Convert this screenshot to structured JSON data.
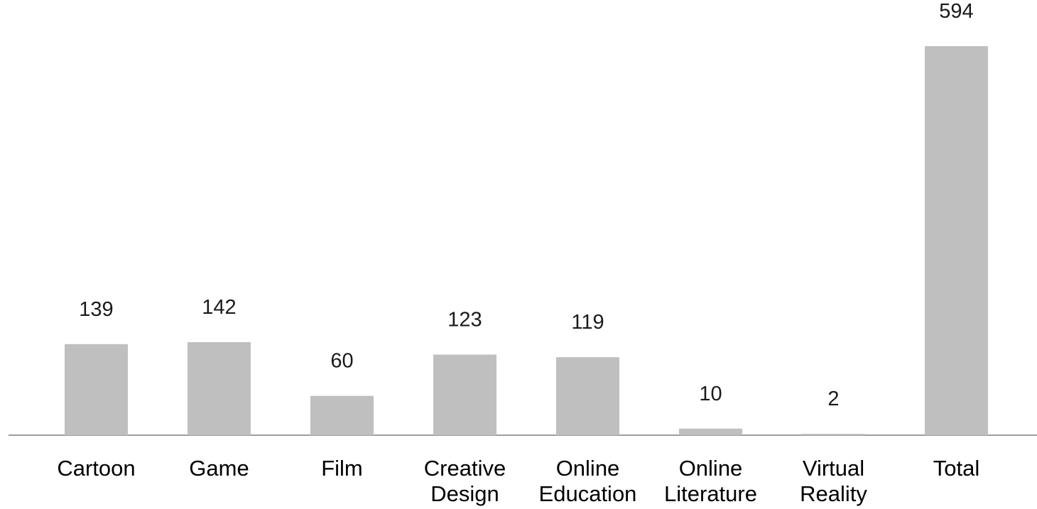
{
  "chart_data": {
    "type": "bar",
    "categories": [
      [
        "Cartoon"
      ],
      [
        "Game"
      ],
      [
        "Film"
      ],
      [
        "Creative",
        "Design"
      ],
      [
        "Online",
        "Education"
      ],
      [
        "Online",
        "Literature"
      ],
      [
        "Virtual",
        "Reality"
      ],
      [
        "Total"
      ]
    ],
    "values": [
      139,
      142,
      60,
      123,
      119,
      10,
      2,
      594
    ],
    "data_labels": [
      "139",
      "142",
      "60",
      "123",
      "119",
      "10",
      "2",
      "594"
    ],
    "bar_color": "#bfbfbf",
    "axis_color": "#7f7f7f",
    "label_color": "#1a1a1a",
    "xlabel": "",
    "ylabel": "",
    "ylim": [
      0,
      594
    ],
    "grid": false,
    "legend": "none"
  }
}
